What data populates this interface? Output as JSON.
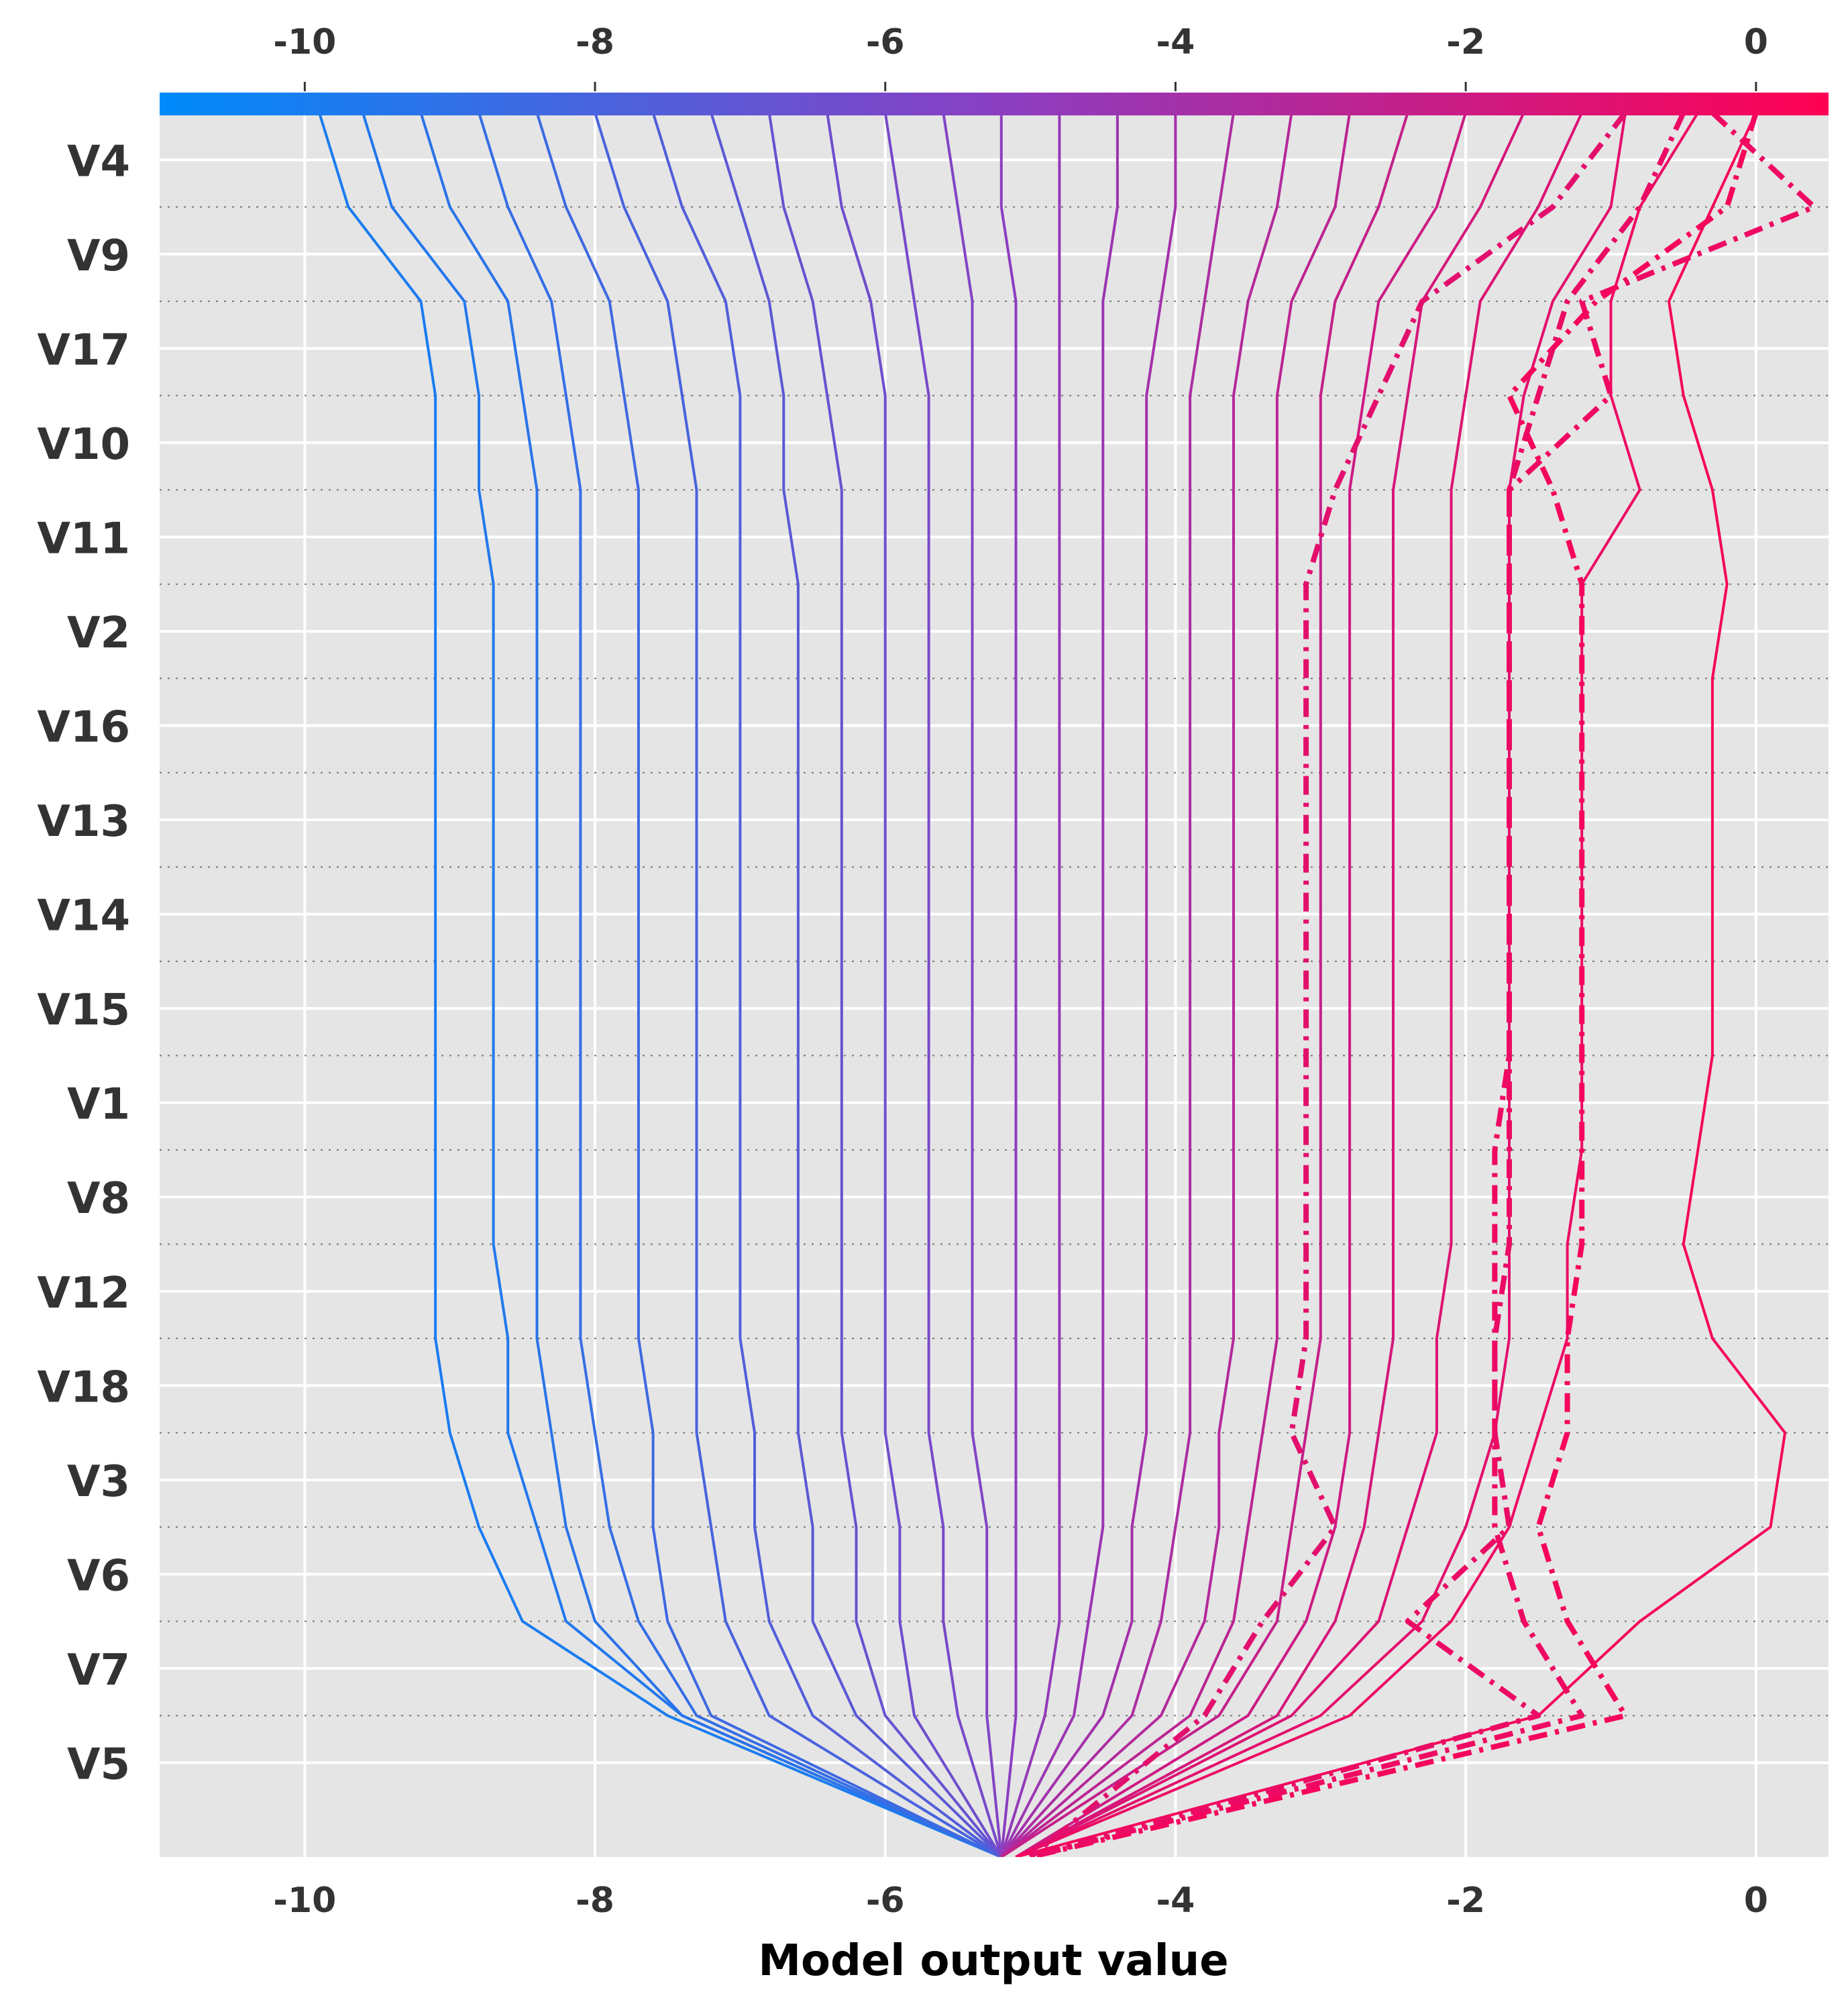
{
  "chart_data": {
    "type": "line",
    "title": "",
    "xlabel": "Model output value",
    "ylabel": "",
    "xlim": [
      -11.0,
      0.5
    ],
    "x_ticks": [
      "-10",
      "-8",
      "-6",
      "-4",
      "-2",
      "0"
    ],
    "x_tick_values": [
      -10,
      -8,
      -6,
      -4,
      -2,
      0
    ],
    "features": [
      "V4",
      "V9",
      "V17",
      "V10",
      "V11",
      "V2",
      "V16",
      "V13",
      "V14",
      "V15",
      "V1",
      "V8",
      "V12",
      "V18",
      "V3",
      "V6",
      "V7",
      "V5"
    ],
    "base_value": -5.2,
    "grid": true,
    "colorbar": {
      "position": "top",
      "from_color": "#008bfb",
      "mid_color": "#8a3fc2",
      "to_color": "#ff0052"
    },
    "series": [
      {
        "x": [
          -9.9,
          -9.7,
          -9.2,
          -9.1,
          -9.1,
          -9.1,
          -9.1,
          -9.1,
          -9.1,
          -9.1,
          -9.1,
          -9.1,
          -9.1,
          -9.1,
          -9.0,
          -8.8,
          -8.5,
          -7.5,
          -5.2
        ]
      },
      {
        "x": [
          -9.6,
          -9.4,
          -8.9,
          -8.8,
          -8.8,
          -8.7,
          -8.7,
          -8.7,
          -8.7,
          -8.7,
          -8.7,
          -8.7,
          -8.7,
          -8.6,
          -8.6,
          -8.4,
          -8.2,
          -7.4,
          -5.2
        ]
      },
      {
        "x": [
          -9.2,
          -9.0,
          -8.6,
          -8.5,
          -8.4,
          -8.4,
          -8.4,
          -8.4,
          -8.4,
          -8.4,
          -8.4,
          -8.4,
          -8.4,
          -8.4,
          -8.3,
          -8.2,
          -8.0,
          -7.4,
          -5.2
        ]
      },
      {
        "x": [
          -8.8,
          -8.6,
          -8.3,
          -8.2,
          -8.1,
          -8.1,
          -8.1,
          -8.1,
          -8.1,
          -8.1,
          -8.1,
          -8.1,
          -8.1,
          -8.1,
          -8.0,
          -7.9,
          -7.7,
          -7.3,
          -5.2
        ]
      },
      {
        "x": [
          -8.4,
          -8.2,
          -7.9,
          -7.8,
          -7.7,
          -7.7,
          -7.7,
          -7.7,
          -7.7,
          -7.7,
          -7.7,
          -7.7,
          -7.7,
          -7.7,
          -7.6,
          -7.6,
          -7.5,
          -7.2,
          -5.2
        ]
      },
      {
        "x": [
          -8.0,
          -7.8,
          -7.5,
          -7.4,
          -7.3,
          -7.3,
          -7.3,
          -7.3,
          -7.3,
          -7.3,
          -7.3,
          -7.3,
          -7.3,
          -7.3,
          -7.3,
          -7.2,
          -7.1,
          -6.8,
          -5.2
        ]
      },
      {
        "x": [
          -7.6,
          -7.4,
          -7.1,
          -7.0,
          -7.0,
          -7.0,
          -7.0,
          -7.0,
          -7.0,
          -7.0,
          -7.0,
          -7.0,
          -7.0,
          -7.0,
          -6.9,
          -6.9,
          -6.8,
          -6.5,
          -5.2
        ]
      },
      {
        "x": [
          -7.2,
          -7.0,
          -6.8,
          -6.7,
          -6.7,
          -6.6,
          -6.6,
          -6.6,
          -6.6,
          -6.6,
          -6.6,
          -6.6,
          -6.6,
          -6.6,
          -6.6,
          -6.5,
          -6.5,
          -6.2,
          -5.2
        ]
      },
      {
        "x": [
          -6.8,
          -6.7,
          -6.5,
          -6.4,
          -6.3,
          -6.3,
          -6.3,
          -6.3,
          -6.3,
          -6.3,
          -6.3,
          -6.3,
          -6.3,
          -6.3,
          -6.3,
          -6.2,
          -6.2,
          -6.0,
          -5.2
        ]
      },
      {
        "x": [
          -6.4,
          -6.3,
          -6.1,
          -6.0,
          -6.0,
          -6.0,
          -6.0,
          -6.0,
          -6.0,
          -6.0,
          -6.0,
          -6.0,
          -6.0,
          -6.0,
          -6.0,
          -5.9,
          -5.9,
          -5.8,
          -5.2
        ]
      },
      {
        "x": [
          -6.0,
          -5.9,
          -5.8,
          -5.7,
          -5.7,
          -5.7,
          -5.7,
          -5.7,
          -5.7,
          -5.7,
          -5.7,
          -5.7,
          -5.7,
          -5.7,
          -5.7,
          -5.6,
          -5.6,
          -5.5,
          -5.2
        ]
      },
      {
        "x": [
          -5.6,
          -5.5,
          -5.4,
          -5.4,
          -5.4,
          -5.4,
          -5.4,
          -5.4,
          -5.4,
          -5.4,
          -5.4,
          -5.4,
          -5.4,
          -5.4,
          -5.4,
          -5.3,
          -5.3,
          -5.3,
          -5.2
        ]
      },
      {
        "x": [
          -5.2,
          -5.2,
          -5.1,
          -5.1,
          -5.1,
          -5.1,
          -5.1,
          -5.1,
          -5.1,
          -5.1,
          -5.1,
          -5.1,
          -5.1,
          -5.1,
          -5.1,
          -5.1,
          -5.1,
          -5.1,
          -5.2
        ]
      },
      {
        "x": [
          -4.8,
          -4.8,
          -4.8,
          -4.8,
          -4.8,
          -4.8,
          -4.8,
          -4.8,
          -4.8,
          -4.8,
          -4.8,
          -4.8,
          -4.8,
          -4.8,
          -4.8,
          -4.8,
          -4.8,
          -4.9,
          -5.2
        ]
      },
      {
        "x": [
          -4.4,
          -4.4,
          -4.5,
          -4.5,
          -4.5,
          -4.5,
          -4.5,
          -4.5,
          -4.5,
          -4.5,
          -4.5,
          -4.5,
          -4.5,
          -4.5,
          -4.5,
          -4.5,
          -4.6,
          -4.7,
          -5.2
        ]
      },
      {
        "x": [
          -4.0,
          -4.0,
          -4.1,
          -4.2,
          -4.2,
          -4.2,
          -4.2,
          -4.2,
          -4.2,
          -4.2,
          -4.2,
          -4.2,
          -4.2,
          -4.2,
          -4.2,
          -4.3,
          -4.3,
          -4.5,
          -5.2
        ]
      },
      {
        "x": [
          -3.6,
          -3.7,
          -3.8,
          -3.9,
          -3.9,
          -3.9,
          -3.9,
          -3.9,
          -3.9,
          -3.9,
          -3.9,
          -3.9,
          -3.9,
          -3.9,
          -3.9,
          -4.0,
          -4.1,
          -4.3,
          -5.2
        ]
      },
      {
        "x": [
          -3.2,
          -3.3,
          -3.5,
          -3.6,
          -3.6,
          -3.6,
          -3.6,
          -3.6,
          -3.6,
          -3.6,
          -3.6,
          -3.6,
          -3.6,
          -3.6,
          -3.7,
          -3.7,
          -3.8,
          -4.1,
          -5.2
        ]
      },
      {
        "x": [
          -2.8,
          -2.9,
          -3.2,
          -3.3,
          -3.3,
          -3.3,
          -3.3,
          -3.3,
          -3.3,
          -3.3,
          -3.3,
          -3.3,
          -3.3,
          -3.3,
          -3.4,
          -3.5,
          -3.6,
          -3.9,
          -5.2
        ]
      },
      {
        "x": [
          -2.4,
          -2.6,
          -2.9,
          -3.0,
          -3.0,
          -3.0,
          -3.0,
          -3.0,
          -3.0,
          -3.0,
          -3.0,
          -3.0,
          -3.0,
          -3.0,
          -3.1,
          -3.2,
          -3.3,
          -3.7,
          -5.2
        ]
      },
      {
        "x": [
          -2.0,
          -2.2,
          -2.6,
          -2.7,
          -2.8,
          -2.8,
          -2.8,
          -2.8,
          -2.8,
          -2.8,
          -2.8,
          -2.8,
          -2.8,
          -2.8,
          -2.8,
          -2.9,
          -3.1,
          -3.5,
          -5.1
        ]
      },
      {
        "x": [
          -1.6,
          -1.9,
          -2.3,
          -2.4,
          -2.5,
          -2.5,
          -2.5,
          -2.5,
          -2.5,
          -2.5,
          -2.5,
          -2.5,
          -2.5,
          -2.5,
          -2.6,
          -2.7,
          -2.9,
          -3.3,
          -5.1
        ]
      },
      {
        "x": [
          -1.2,
          -1.5,
          -1.9,
          -2.0,
          -2.1,
          -2.1,
          -2.1,
          -2.1,
          -2.1,
          -2.1,
          -2.1,
          -2.1,
          -2.1,
          -2.2,
          -2.2,
          -2.4,
          -2.6,
          -3.2,
          -5.1
        ]
      },
      {
        "x": [
          -0.9,
          -1.0,
          -1.4,
          -1.6,
          -1.7,
          -1.7,
          -1.7,
          -1.7,
          -1.7,
          -1.7,
          -1.7,
          -1.7,
          -1.7,
          -1.7,
          -1.8,
          -2.0,
          -2.3,
          -3.0,
          -5.1
        ]
      },
      {
        "x": [
          -0.4,
          -0.8,
          -1.0,
          -1.0,
          -0.8,
          -1.2,
          -1.2,
          -1.2,
          -1.2,
          -1.2,
          -1.2,
          -1.2,
          -1.3,
          -1.3,
          -1.5,
          -1.7,
          -2.1,
          -2.8,
          -5.1
        ]
      },
      {
        "x": [
          0.0,
          -0.3,
          -0.6,
          -0.5,
          -0.3,
          -0.2,
          -0.3,
          -0.3,
          -0.3,
          -0.3,
          -0.3,
          -0.4,
          -0.5,
          -0.3,
          0.2,
          0.1,
          -0.8,
          -1.5,
          -5.1
        ]
      },
      {
        "x": [
          -0.3,
          0.4,
          -1.2,
          -1.0,
          -1.7,
          -1.7,
          -1.7,
          -1.7,
          -1.7,
          -1.7,
          -1.7,
          -1.8,
          -1.8,
          -1.8,
          -1.8,
          -1.8,
          -1.6,
          -1.2,
          -5.0
        ],
        "style": "dashdot"
      },
      {
        "x": [
          0.0,
          -0.2,
          -1.1,
          -1.7,
          -1.4,
          -1.2,
          -1.2,
          -1.2,
          -1.2,
          -1.2,
          -1.2,
          -1.2,
          -1.2,
          -1.3,
          -1.3,
          -1.5,
          -1.3,
          -0.9,
          -5.0
        ],
        "style": "dashdot"
      },
      {
        "x": [
          -0.5,
          -0.8,
          -1.3,
          -1.5,
          -1.7,
          -1.7,
          -1.7,
          -1.7,
          -1.7,
          -1.7,
          -1.7,
          -1.7,
          -1.7,
          -1.8,
          -1.8,
          -1.7,
          -2.4,
          -1.5,
          -5.0
        ],
        "style": "dashdot"
      },
      {
        "x": [
          -0.9,
          -1.4,
          -2.3,
          -2.6,
          -2.9,
          -3.1,
          -3.1,
          -3.1,
          -3.1,
          -3.1,
          -3.1,
          -3.1,
          -3.1,
          -3.1,
          -3.2,
          -2.9,
          -3.4,
          -3.8,
          -5.0
        ],
        "style": "dashdot"
      }
    ]
  }
}
